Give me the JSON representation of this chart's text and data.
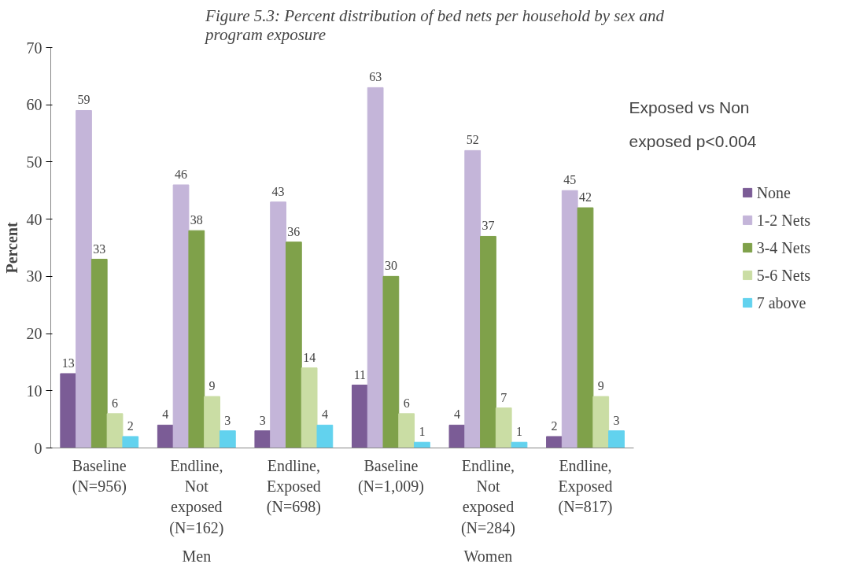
{
  "chart_data": {
    "type": "bar",
    "title": "Figure 5.3: Percent distribution of bed nets per household by sex and program exposure",
    "ylabel": "Percent",
    "categories": [
      "Baseline (N=956)",
      "Endline, Not exposed (N=162)",
      "Endline, Exposed (N=698)",
      "Baseline (N=1,009)",
      "Endline, Not exposed (N=284)",
      "Endline, Exposed (N=817)"
    ],
    "series": [
      {
        "name": "None",
        "color": "#7b5c96",
        "values": [
          13,
          4,
          3,
          11,
          4,
          2
        ]
      },
      {
        "name": "1-2 Nets",
        "color": "#c4b5d9",
        "values": [
          59,
          46,
          43,
          63,
          52,
          45
        ]
      },
      {
        "name": "3-4 Nets",
        "color": "#7fa14a",
        "values": [
          33,
          38,
          36,
          30,
          37,
          42
        ]
      },
      {
        "name": "5-6 Nets",
        "color": "#cadda4",
        "values": [
          6,
          9,
          14,
          6,
          7,
          9
        ]
      },
      {
        "name": "7 above",
        "color": "#62d2ee",
        "values": [
          2,
          3,
          4,
          1,
          1,
          3
        ]
      }
    ],
    "ylim": [
      0,
      70
    ],
    "yticks": [
      0,
      10,
      20,
      30,
      40,
      50,
      60,
      70
    ],
    "grid": false,
    "legend": "right",
    "data_labels": true,
    "annotations": [
      "Exposed vs Non exposed p<0.004",
      "Men",
      "Women"
    ]
  }
}
